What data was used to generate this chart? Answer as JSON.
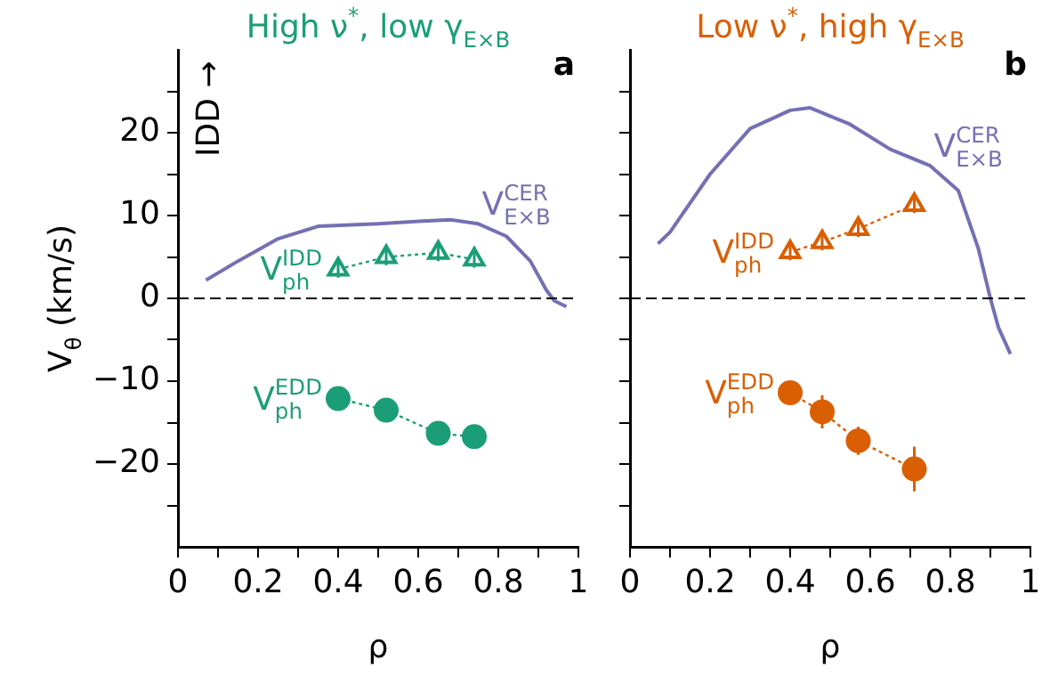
{
  "chart_data": [
    {
      "type": "line",
      "title": "High ν$^{*}$, low γ$_{E×B}$",
      "xlabel": "ρ",
      "ylabel": "V$_{θ}$ (km/s)",
      "annotations": [
        "a",
        "IDD →"
      ],
      "xlim": [
        0,
        1
      ],
      "xticks": [
        0,
        {
          "value": 0.1,
          "label": null
        },
        0.2,
        {
          "value": 0.3,
          "label": null
        },
        0.4,
        {
          "value": 0.5,
          "label": null
        },
        0.6,
        {
          "value": 0.7,
          "label": null
        },
        0.8,
        {
          "value": 0.9,
          "label": null
        },
        1
      ],
      "ylim": [
        -30,
        30
      ],
      "yticks": [
        {
          "value": -25,
          "label": null
        },
        -20,
        {
          "value": -15,
          "label": null
        },
        -10,
        {
          "value": -5,
          "label": null
        },
        0,
        {
          "value": 5,
          "label": null
        },
        10,
        {
          "value": 15,
          "label": null
        },
        20,
        {
          "value": 25,
          "label": null
        }
      ],
      "grid": false,
      "legend": false,
      "ref_lines": [
        {
          "axis": "y",
          "value": 0,
          "color": "#000000",
          "line_style": "dashed"
        }
      ],
      "series": [
        {
          "name": "V$_{E×B}$$^{CER}$",
          "color": "#7570b3",
          "marker": "none",
          "line_style": "solid",
          "x": [
            0.07,
            0.15,
            0.25,
            0.35,
            0.5,
            0.6,
            0.68,
            0.75,
            0.82,
            0.88,
            0.92,
            0.94,
            0.97
          ],
          "values": [
            2.2,
            4.5,
            7.2,
            8.7,
            9,
            9.3,
            9.5,
            9,
            7.5,
            4.5,
            1,
            -0.3,
            -1
          ]
        },
        {
          "name": "V$_{ph}$$^{IDD}$",
          "color": "#1b9e77",
          "marker": "triangle",
          "line_style": "dotted",
          "x": [
            0.4,
            0.52,
            0.65,
            0.74
          ],
          "values": [
            3.5,
            5,
            5.5,
            4.7
          ],
          "errors": [
            1,
            1,
            1,
            1
          ]
        },
        {
          "name": "V$_{ph}$$^{EDD}$",
          "color": "#1b9e77",
          "marker": "circle",
          "line_style": "dotted",
          "x": [
            0.4,
            0.52,
            0.65,
            0.74
          ],
          "values": [
            -12.1,
            -13.5,
            -16.3,
            -16.7
          ],
          "errors": [
            0.8,
            0.8,
            0.8,
            1.2
          ]
        }
      ]
    },
    {
      "type": "line",
      "title": "Low ν$^{*}$, high γ$_{E×B}$",
      "xlabel": "ρ",
      "annotations": [
        "b"
      ],
      "tick_labels": "x",
      "xlim": [
        0,
        1
      ],
      "xticks": [
        0,
        {
          "value": 0.1,
          "label": null
        },
        0.2,
        {
          "value": 0.3,
          "label": null
        },
        0.4,
        {
          "value": 0.5,
          "label": null
        },
        0.6,
        {
          "value": 0.7,
          "label": null
        },
        0.8,
        {
          "value": 0.9,
          "label": null
        },
        1
      ],
      "ylim": [
        -30,
        30
      ],
      "yticks": [
        {
          "value": -25,
          "label": null
        },
        {
          "value": -20,
          "label": null
        },
        {
          "value": -15,
          "label": null
        },
        {
          "value": -10,
          "label": null
        },
        {
          "value": -5,
          "label": null
        },
        {
          "value": 0,
          "label": null
        },
        {
          "value": 5,
          "label": null
        },
        {
          "value": 10,
          "label": null
        },
        {
          "value": 15,
          "label": null
        },
        {
          "value": 20,
          "label": null
        },
        {
          "value": 25,
          "label": null
        }
      ],
      "grid": false,
      "legend": false,
      "ref_lines": [
        {
          "axis": "y",
          "value": 0,
          "color": "#000000",
          "line_style": "dashed"
        }
      ],
      "series": [
        {
          "name": "V$_{E×B}$$^{CER}$",
          "color": "#7570b3",
          "marker": "none",
          "line_style": "solid",
          "x": [
            0.07,
            0.1,
            0.2,
            0.3,
            0.4,
            0.45,
            0.55,
            0.65,
            0.75,
            0.82,
            0.87,
            0.9,
            0.92,
            0.95
          ],
          "values": [
            6.6,
            8,
            15,
            20.5,
            22.7,
            23,
            21,
            18,
            16,
            13,
            6,
            0,
            -3.5,
            -6.7
          ]
        },
        {
          "name": "V$_{ph}$$^{IDD}$",
          "color": "#d95f02",
          "marker": "triangle",
          "line_style": "dotted",
          "x": [
            0.4,
            0.48,
            0.57,
            0.71
          ],
          "values": [
            5.6,
            6.8,
            8.4,
            11.3
          ],
          "errors": [
            1,
            1,
            1,
            1
          ]
        },
        {
          "name": "V$_{ph}$$^{EDD}$",
          "color": "#d95f02",
          "marker": "circle",
          "line_style": "dotted",
          "x": [
            0.4,
            0.48,
            0.57,
            0.71
          ],
          "values": [
            -11.4,
            -13.7,
            -17.2,
            -20.6
          ],
          "errors": [
            0.8,
            2,
            1.7,
            2.7
          ]
        }
      ]
    }
  ]
}
